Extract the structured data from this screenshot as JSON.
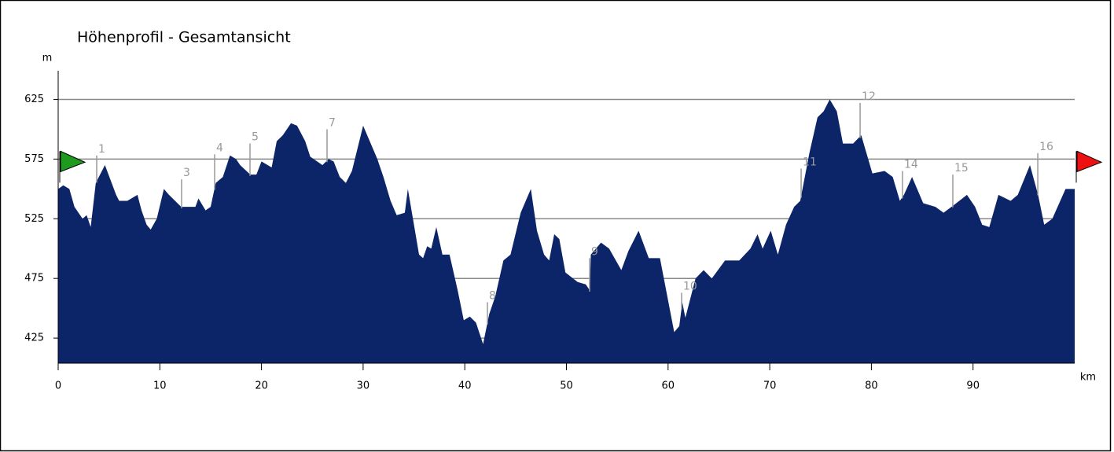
{
  "chart_data": {
    "type": "area",
    "title": "Höhenprofil - Gesamtansicht",
    "y_label": "m",
    "x_label": "km",
    "color": "#0c2468",
    "xlim": [
      0,
      100
    ],
    "xticks": [
      0,
      10,
      20,
      30,
      40,
      50,
      60,
      70,
      80,
      90
    ],
    "ylim": [
      404,
      649
    ],
    "yticks": [
      425,
      475,
      525,
      575,
      625
    ],
    "grid": true,
    "x": [
      0,
      0.5,
      1.1,
      1.6,
      2.4,
      2.8,
      3.2,
      3.7,
      4.6,
      5.7,
      6,
      6.8,
      7.8,
      8.2,
      8.7,
      9.1,
      9.7,
      10.4,
      10.9,
      12.1,
      13.5,
      13.8,
      14.5,
      15,
      15.5,
      16.2,
      16.9,
      17.5,
      17.9,
      18.9,
      19.5,
      20,
      21,
      21.5,
      22.1,
      22.9,
      23.5,
      24.3,
      24.8,
      26,
      26.6,
      27.1,
      27.7,
      28.3,
      28.9,
      30,
      31.4,
      32,
      32.7,
      33.3,
      34.1,
      34.4,
      34.9,
      35.5,
      35.9,
      36.3,
      36.7,
      37.2,
      37.8,
      38.5,
      39.3,
      39.9,
      40.5,
      41.1,
      41.8,
      42.4,
      43,
      43.8,
      44.5,
      45.5,
      46.5,
      47.1,
      47.8,
      48.3,
      48.8,
      49.3,
      49.9,
      51.1,
      51.9,
      52.3,
      52.4,
      53.4,
      54.2,
      55.4,
      56.1,
      57.1,
      58.1,
      59.2,
      60.6,
      61.1,
      61.4,
      61.7,
      62.7,
      63.5,
      64.3,
      65.6,
      67,
      68.1,
      68.8,
      69.3,
      70.1,
      70.8,
      71.6,
      72.4,
      73,
      73.9,
      74.7,
      75.3,
      75.9,
      76.6,
      77.2,
      78.2,
      79,
      80.1,
      81.3,
      82.1,
      82.8,
      83.2,
      84,
      85.1,
      86.3,
      87.1,
      88.2,
      89.4,
      90.2,
      90.9,
      91.6,
      92.5,
      93.7,
      94.4,
      95.6,
      96.4,
      97,
      97.8,
      99.1,
      100
    ],
    "values": [
      550,
      553,
      550,
      535,
      525,
      528,
      518,
      555,
      570,
      545,
      540,
      540,
      545,
      532,
      520,
      516,
      525,
      550,
      545,
      535,
      535,
      542,
      532,
      535,
      555,
      560,
      578,
      575,
      570,
      562,
      562,
      573,
      568,
      590,
      595,
      605,
      603,
      590,
      577,
      570,
      575,
      573,
      560,
      555,
      565,
      603,
      575,
      560,
      540,
      528,
      530,
      550,
      525,
      495,
      492,
      502,
      500,
      518,
      495,
      495,
      465,
      440,
      443,
      438,
      420,
      445,
      460,
      490,
      495,
      530,
      550,
      515,
      495,
      490,
      512,
      508,
      480,
      472,
      470,
      465,
      495,
      505,
      500,
      482,
      498,
      515,
      492,
      492,
      430,
      435,
      455,
      442,
      475,
      482,
      475,
      490,
      490,
      500,
      512,
      500,
      515,
      495,
      520,
      535,
      540,
      580,
      610,
      615,
      625,
      615,
      588,
      588,
      595,
      563,
      565,
      560,
      540,
      545,
      560,
      538,
      535,
      530,
      537,
      545,
      535,
      520,
      518,
      545,
      540,
      545,
      570,
      545,
      520,
      525,
      550,
      550
    ],
    "markers": [
      {
        "label": "1",
        "x": 3.79,
        "y": 578
      },
      {
        "label": "3",
        "x": 12.14,
        "y": 558
      },
      {
        "label": "4",
        "x": 15.39,
        "y": 579
      },
      {
        "label": "5",
        "x": 18.87,
        "y": 588
      },
      {
        "label": "7",
        "x": 26.45,
        "y": 600
      },
      {
        "label": "8",
        "x": 42.23,
        "y": 455
      },
      {
        "label": "9",
        "x": 52.28,
        "y": 492
      },
      {
        "label": "10",
        "x": 61.33,
        "y": 463
      },
      {
        "label": "11",
        "x": 73.09,
        "y": 567
      },
      {
        "label": "12",
        "x": 78.89,
        "y": 622
      },
      {
        "label": "14",
        "x": 83.06,
        "y": 565
      },
      {
        "label": "15",
        "x": 88.01,
        "y": 562
      },
      {
        "label": "16",
        "x": 96.37,
        "y": 580
      }
    ]
  }
}
